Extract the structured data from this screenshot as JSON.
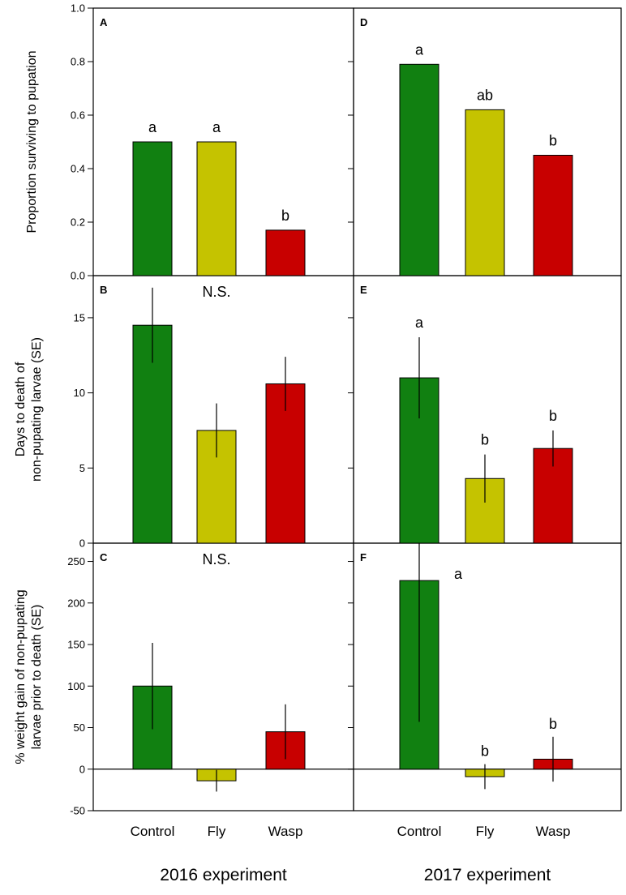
{
  "chart_data": {
    "type": "bar",
    "categories": [
      "Control",
      "Fly",
      "Wasp"
    ],
    "bar_colors": [
      "#118011",
      "#c5c300",
      "#c80000"
    ],
    "columns": [
      {
        "footer": "2016 experiment"
      },
      {
        "footer": "2017 experiment"
      }
    ],
    "rows": [
      {
        "ylabel_lines": [
          "Proportion surviving to pupation"
        ],
        "ylim": [
          0,
          1.0
        ],
        "yticks": [
          0.0,
          0.2,
          0.4,
          0.6,
          0.8,
          1.0
        ],
        "ytick_labels": [
          "0.0",
          "0.2",
          "0.4",
          "0.6",
          "0.8",
          "1.0"
        ]
      },
      {
        "ylabel_lines": [
          "Days to death of",
          "non-pupating larvae (SE)"
        ],
        "ylim": [
          0,
          17.8
        ],
        "yticks": [
          0,
          5,
          10,
          15
        ],
        "ytick_labels": [
          "0",
          "5",
          "10",
          "15"
        ]
      },
      {
        "ylabel_lines": [
          "% weight gain of non-pupating",
          "larvae prior to death (SE)"
        ],
        "ylim": [
          -50,
          272
        ],
        "yticks": [
          -50,
          0,
          50,
          100,
          150,
          200,
          250
        ],
        "ytick_labels": [
          "-50",
          "0",
          "50",
          "100",
          "150",
          "200",
          "250"
        ]
      }
    ],
    "panels": [
      {
        "id": "A",
        "row": 0,
        "col": 0,
        "values": [
          0.5,
          0.5,
          0.17
        ],
        "errors": null,
        "labels": [
          "a",
          "a",
          "b"
        ],
        "note": null
      },
      {
        "id": "B",
        "row": 1,
        "col": 0,
        "values": [
          14.5,
          7.5,
          10.6
        ],
        "errors": [
          2.5,
          1.8,
          1.8
        ],
        "labels": null,
        "note": "N.S."
      },
      {
        "id": "C",
        "row": 2,
        "col": 0,
        "values": [
          100,
          -14,
          45
        ],
        "errors": [
          52,
          13,
          33
        ],
        "labels": null,
        "note": "N.S."
      },
      {
        "id": "D",
        "row": 0,
        "col": 1,
        "values": [
          0.79,
          0.62,
          0.45
        ],
        "errors": null,
        "labels": [
          "a",
          "ab",
          "b"
        ],
        "note": null
      },
      {
        "id": "E",
        "row": 1,
        "col": 1,
        "values": [
          11.0,
          4.3,
          6.3
        ],
        "errors": [
          2.7,
          1.6,
          1.2
        ],
        "labels": [
          "a",
          "b",
          "b"
        ],
        "note": null
      },
      {
        "id": "F",
        "row": 2,
        "col": 1,
        "values": [
          227,
          -9,
          12
        ],
        "errors": [
          170,
          15,
          27
        ],
        "labels": [
          "a",
          "b",
          "b"
        ],
        "note": null
      }
    ]
  }
}
